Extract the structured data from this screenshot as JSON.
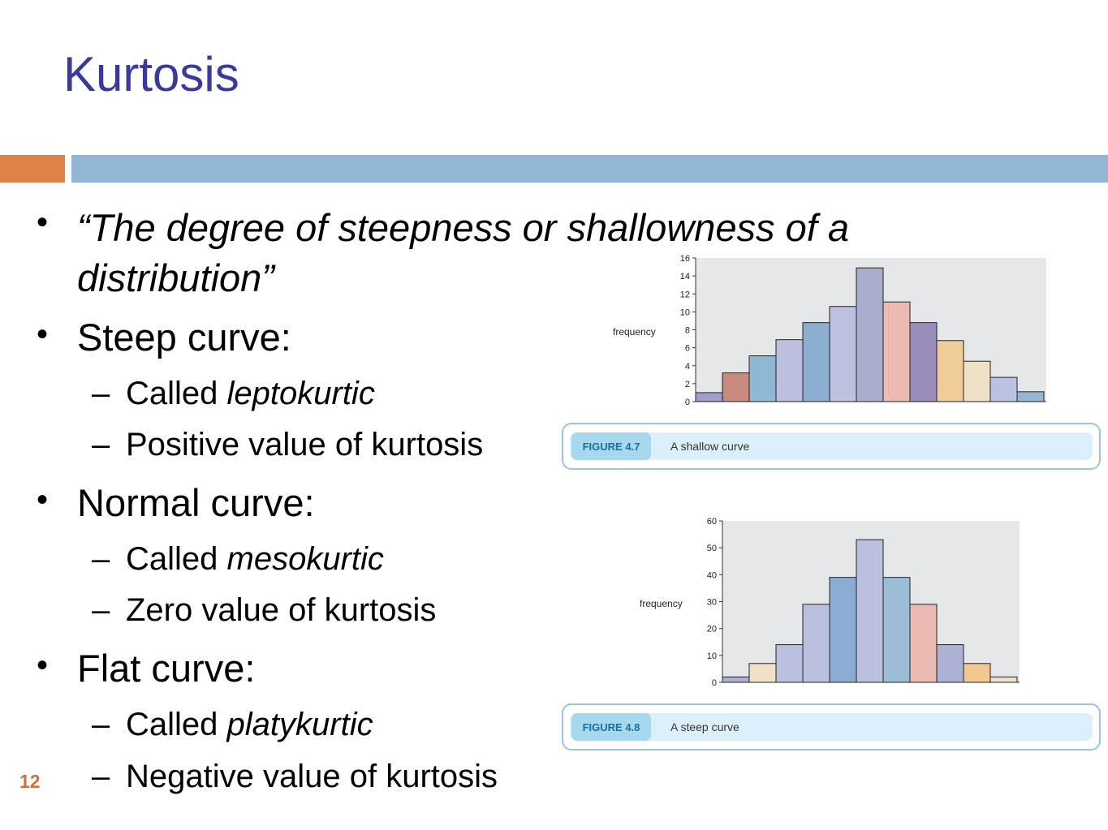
{
  "slide": {
    "title": "Kurtosis",
    "page_number": "12",
    "bullets": {
      "definition": "“The degree of steepness or shallowness of a distribution”",
      "steep": "Steep curve:",
      "steep_called_prefix": "Called ",
      "steep_called_term": "leptokurtic",
      "steep_value": "Positive value of kurtosis",
      "normal": "Normal curve:",
      "normal_called_prefix": "Called ",
      "normal_called_term": "mesokurtic",
      "normal_value": "Zero value of kurtosis",
      "flat": "Flat curve:",
      "flat_called_prefix": "Called ",
      "flat_called_term": "platykurtic",
      "flat_value": "Negative value of kurtosis"
    },
    "dash": "–",
    "bullet_glyph": "•"
  },
  "figures": [
    {
      "tag": "FIGURE 4.7",
      "caption": "A shallow curve"
    },
    {
      "tag": "FIGURE 4.8",
      "caption": "A steep curve"
    }
  ],
  "chart_data": [
    {
      "type": "bar",
      "ylabel": "frequency",
      "ylim": [
        0,
        16
      ],
      "yticks": [
        0,
        2,
        4,
        6,
        8,
        10,
        12,
        14,
        16
      ],
      "values": [
        1,
        3.2,
        5.1,
        6.9,
        8.8,
        10.6,
        14.9,
        11.1,
        8.8,
        6.8,
        4.5,
        2.7,
        1.1
      ],
      "colors": [
        "#9f9fcf",
        "#c98a7e",
        "#8fb8d3",
        "#bcbfdf",
        "#8caed3",
        "#bdc0de",
        "#a9aece",
        "#ebbbb3",
        "#9a8db9",
        "#f0cc9a",
        "#f0e0c8",
        "#bcc3e1",
        "#93b6d4"
      ],
      "grid": false
    },
    {
      "type": "bar",
      "ylabel": "frequency",
      "ylim": [
        0,
        60
      ],
      "yticks": [
        0,
        10,
        20,
        30,
        40,
        50,
        60
      ],
      "values": [
        2,
        7,
        14,
        29,
        39,
        53,
        39,
        29,
        14,
        7,
        2
      ],
      "colors": [
        "#aeb1d6",
        "#f0e0c8",
        "#bcc0df",
        "#bcc0df",
        "#8aacd2",
        "#bcc0df",
        "#9dbdd6",
        "#ebbbb3",
        "#aeb1d6",
        "#f2c891",
        "#f0e0c8"
      ],
      "grid": false
    }
  ]
}
